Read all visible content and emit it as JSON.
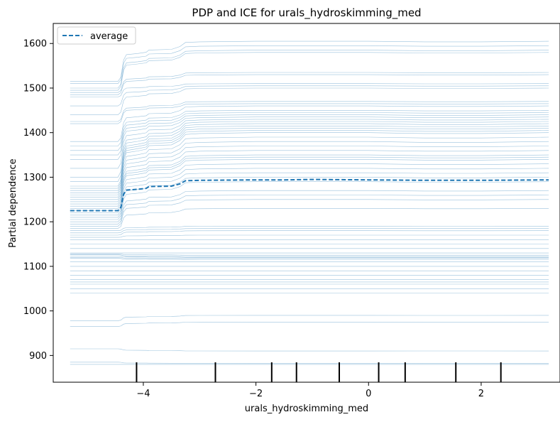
{
  "chart_data": {
    "type": "line",
    "title": "PDP and ICE for urals_hydroskimming_med",
    "xlabel": "urals_hydroskimming_med",
    "ylabel": "Partial dependence",
    "xlim": [
      -5.6,
      3.4
    ],
    "ylim": [
      840,
      1645
    ],
    "x_ticks": [
      -4,
      -2,
      0,
      2
    ],
    "x_tick_labels": [
      "−4",
      "−2",
      "0",
      "2"
    ],
    "y_ticks": [
      900,
      1000,
      1100,
      1200,
      1300,
      1400,
      1500,
      1600
    ],
    "y_tick_labels": [
      "900",
      "1000",
      "1100",
      "1200",
      "1300",
      "1400",
      "1500",
      "1600"
    ],
    "grid": false,
    "legend": {
      "location": "upper-left",
      "entries": [
        {
          "label": "average",
          "style": "dashed",
          "color": "#1f77b4"
        }
      ]
    },
    "colors": {
      "average": "#1f77b4",
      "ice": "#1f77b4",
      "rug": "#000000"
    },
    "series": [
      {
        "name": "average",
        "x": [
          -5.3,
          -4.7,
          -4.45,
          -4.4,
          -4.35,
          -4.3,
          -4.1,
          -3.95,
          -3.9,
          -3.5,
          -3.35,
          -3.25,
          -3.0,
          -2.0,
          -1.5,
          -1.0,
          0.0,
          1.0,
          2.0,
          3.2
        ],
        "values": [
          1225,
          1225,
          1225,
          1232,
          1262,
          1271,
          1273,
          1275,
          1279,
          1280,
          1285,
          1292,
          1293,
          1294,
          1294,
          1295,
          1294,
          1293,
          1293,
          1294
        ]
      }
    ],
    "ice_start_values": [
      880,
      885,
      915,
      965,
      978,
      1040,
      1050,
      1060,
      1065,
      1070,
      1080,
      1090,
      1100,
      1110,
      1118,
      1120,
      1123,
      1126,
      1128,
      1130,
      1140,
      1150,
      1160,
      1165,
      1170,
      1175,
      1180,
      1185,
      1190,
      1195,
      1200,
      1205,
      1210,
      1215,
      1220,
      1225,
      1230,
      1235,
      1240,
      1245,
      1250,
      1255,
      1260,
      1265,
      1270,
      1275,
      1280,
      1290,
      1300,
      1320,
      1340,
      1350,
      1360,
      1370,
      1380,
      1420,
      1425,
      1440,
      1460,
      1480,
      1485,
      1490,
      1495,
      1500,
      1510,
      1515
    ],
    "ice_end_values": [
      880,
      882,
      910,
      975,
      990,
      1040,
      1050,
      1060,
      1065,
      1070,
      1080,
      1090,
      1100,
      1110,
      1115,
      1118,
      1120,
      1122,
      1125,
      1130,
      1140,
      1150,
      1160,
      1170,
      1180,
      1185,
      1190,
      1230,
      1250,
      1260,
      1270,
      1290,
      1300,
      1310,
      1320,
      1330,
      1340,
      1345,
      1350,
      1360,
      1370,
      1380,
      1390,
      1400,
      1405,
      1410,
      1415,
      1420,
      1425,
      1430,
      1435,
      1440,
      1445,
      1450,
      1460,
      1465,
      1470,
      1500,
      1505,
      1510,
      1530,
      1535,
      1580,
      1585,
      1595,
      1605
    ],
    "rug_x": [
      -4.12,
      -2.72,
      -1.72,
      -1.28,
      -0.52,
      0.18,
      0.65,
      1.55,
      2.35
    ]
  }
}
